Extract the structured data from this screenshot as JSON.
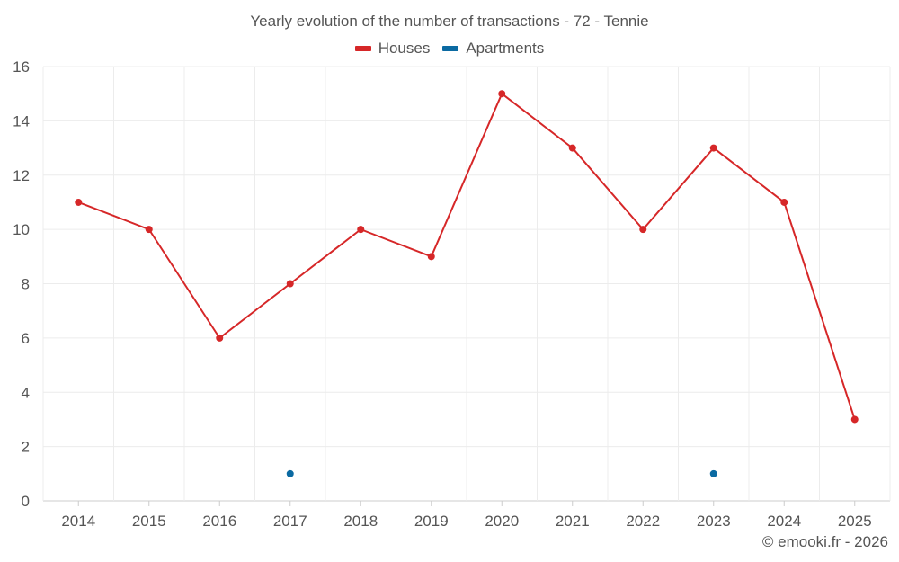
{
  "chart_data": {
    "type": "line",
    "title": "Yearly evolution of the number of transactions - 72 - Tennie",
    "xlabel": "",
    "ylabel": "",
    "categories": [
      "2014",
      "2015",
      "2016",
      "2017",
      "2018",
      "2019",
      "2020",
      "2021",
      "2022",
      "2023",
      "2024",
      "2025"
    ],
    "ylim": [
      0,
      16
    ],
    "yticks": [
      0,
      2,
      4,
      6,
      8,
      10,
      12,
      14,
      16
    ],
    "grid": true,
    "legend_position": "top-center",
    "series": [
      {
        "name": "Houses",
        "color": "#d62728",
        "values": [
          11,
          10,
          6,
          8,
          10,
          9,
          15,
          13,
          10,
          13,
          11,
          3
        ]
      },
      {
        "name": "Apartments",
        "color": "#0b6aa2",
        "values": [
          null,
          null,
          null,
          1,
          null,
          null,
          null,
          null,
          null,
          1,
          null,
          null
        ]
      }
    ]
  },
  "footer": {
    "credit": "© emooki.fr - 2026"
  }
}
